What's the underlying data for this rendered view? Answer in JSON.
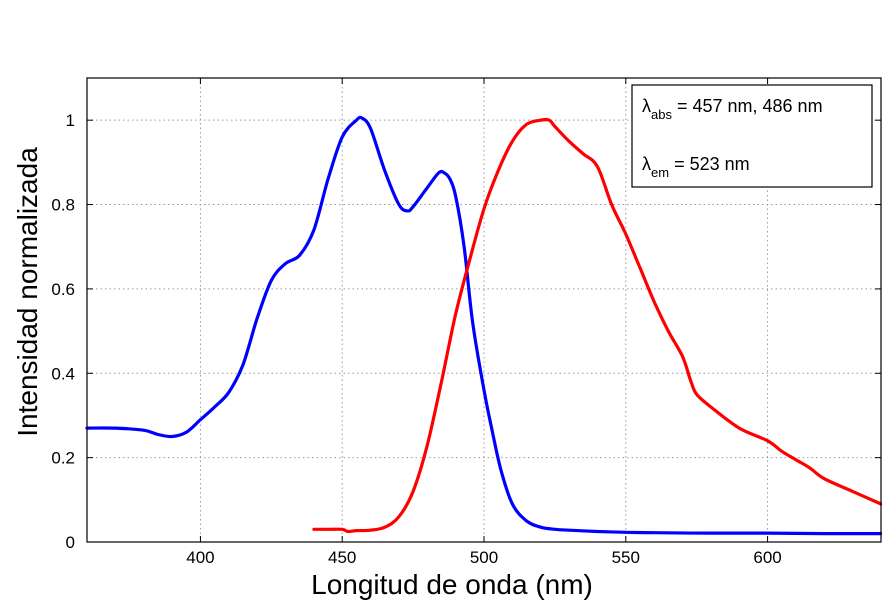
{
  "chart_data": {
    "type": "line",
    "xlabel": "Longitud de onda (nm)",
    "ylabel": "Intensidad normalizada",
    "xlim": [
      360,
      640
    ],
    "ylim": [
      0,
      1.1
    ],
    "x_ticks": [
      400,
      450,
      500,
      550,
      600
    ],
    "x_tick_labels": [
      "400",
      "450",
      "500",
      "550",
      "600"
    ],
    "y_ticks": [
      0,
      0.2,
      0.4,
      0.6,
      0.8,
      1.0
    ],
    "y_tick_labels": [
      "0",
      "0.2",
      "0.4",
      "0.6",
      "0.8",
      "1"
    ],
    "grid": true,
    "legend_position": "top-right",
    "annotation": {
      "line1_symbol": "λ",
      "line1_sub": "abs",
      "line1_text": " = 457 nm, 486 nm",
      "line2_symbol": "λ",
      "line2_sub": "em",
      "line2_text": " = 523 nm"
    },
    "series": [
      {
        "color": "#0000ff",
        "x": [
          360,
          370,
          380,
          385,
          390,
          395,
          400,
          405,
          410,
          415,
          420,
          425,
          430,
          435,
          440,
          445,
          450,
          455,
          457,
          460,
          465,
          470,
          473,
          475,
          480,
          484,
          486,
          488,
          490,
          493,
          496,
          500,
          503,
          506,
          510,
          515,
          520,
          525,
          530,
          540,
          550,
          560,
          580,
          600,
          620,
          640
        ],
        "y": [
          0.27,
          0.27,
          0.265,
          0.255,
          0.25,
          0.26,
          0.29,
          0.32,
          0.355,
          0.42,
          0.53,
          0.62,
          0.66,
          0.68,
          0.74,
          0.86,
          0.96,
          1.0,
          1.005,
          0.98,
          0.88,
          0.8,
          0.785,
          0.795,
          0.84,
          0.875,
          0.875,
          0.86,
          0.82,
          0.7,
          0.52,
          0.36,
          0.26,
          0.17,
          0.09,
          0.05,
          0.035,
          0.03,
          0.028,
          0.025,
          0.023,
          0.022,
          0.021,
          0.021,
          0.02,
          0.02
        ]
      },
      {
        "color": "#ff0000",
        "x": [
          440,
          445,
          450,
          452,
          455,
          460,
          465,
          470,
          475,
          480,
          485,
          490,
          495,
          500,
          505,
          510,
          515,
          520,
          523,
          525,
          530,
          535,
          540,
          545,
          550,
          555,
          560,
          565,
          570,
          573,
          575,
          580,
          590,
          600,
          605,
          610,
          615,
          620,
          630,
          640
        ],
        "y": [
          0.03,
          0.03,
          0.03,
          0.025,
          0.027,
          0.028,
          0.035,
          0.06,
          0.12,
          0.23,
          0.38,
          0.54,
          0.67,
          0.79,
          0.88,
          0.95,
          0.99,
          1.0,
          1.0,
          0.985,
          0.95,
          0.92,
          0.89,
          0.8,
          0.73,
          0.65,
          0.57,
          0.5,
          0.44,
          0.38,
          0.35,
          0.32,
          0.27,
          0.24,
          0.215,
          0.195,
          0.175,
          0.15,
          0.12,
          0.09
        ]
      }
    ]
  }
}
